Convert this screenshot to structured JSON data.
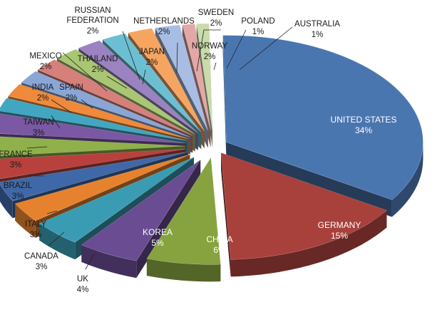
{
  "chart_data": {
    "type": "pie",
    "title": "",
    "series": [
      {
        "slices": [
          {
            "label": "UNITED STATES",
            "value": 34,
            "display": "34%",
            "color": "#4a76b0"
          },
          {
            "label": "GERMANY",
            "value": 15,
            "display": "15%",
            "color": "#a8403c"
          },
          {
            "label": "CHINA",
            "value": 6,
            "display": "6%",
            "color": "#86a33f"
          },
          {
            "label": "KOREA",
            "value": 5,
            "display": "5%",
            "color": "#6a4c93"
          },
          {
            "label": "UK",
            "value": 4,
            "display": "4%",
            "color": "#3a9cb3"
          },
          {
            "label": "CANADA",
            "value": 3,
            "display": "3%",
            "color": "#e6822e"
          },
          {
            "label": "ITALY",
            "value": 3,
            "display": "3%",
            "color": "#3f68a8"
          },
          {
            "label": "BRAZIL",
            "value": 3,
            "display": "3%",
            "color": "#b8413d"
          },
          {
            "label": "FRANCE",
            "value": 3,
            "display": "3%",
            "color": "#8fb04a"
          },
          {
            "label": "TAIWAN",
            "value": 3,
            "display": "3%",
            "color": "#7a58a3"
          },
          {
            "label": "INDIA",
            "value": 2,
            "display": "2%",
            "color": "#41a6c2"
          },
          {
            "label": "SPAIN",
            "value": 2,
            "display": "2%",
            "color": "#ee8a3a"
          },
          {
            "label": "MEXICO",
            "value": 2,
            "display": "2%",
            "color": "#8aa6d6"
          },
          {
            "label": "THAILAND",
            "value": 2,
            "display": "2%",
            "color": "#d67f7b"
          },
          {
            "label": "JAPAN",
            "value": 2,
            "display": "2%",
            "color": "#a9c673"
          },
          {
            "label": "RUSSIAN FEDERATION",
            "value": 2,
            "display": "2%",
            "color": "#9a83c0"
          },
          {
            "label": "NETHERLANDS",
            "value": 2,
            "display": "2%",
            "color": "#6cbfd3"
          },
          {
            "label": "SWEDEN",
            "value": 2,
            "display": "2%",
            "color": "#f6a561"
          },
          {
            "label": "NORWAY",
            "value": 2,
            "display": "2%",
            "color": "#a8bde3"
          },
          {
            "label": "POLAND",
            "value": 1,
            "display": "1%",
            "color": "#e3a8a6"
          },
          {
            "label": "AUSTRALIA",
            "value": 1,
            "display": "1%",
            "color": "#c8dba9"
          }
        ]
      }
    ]
  }
}
